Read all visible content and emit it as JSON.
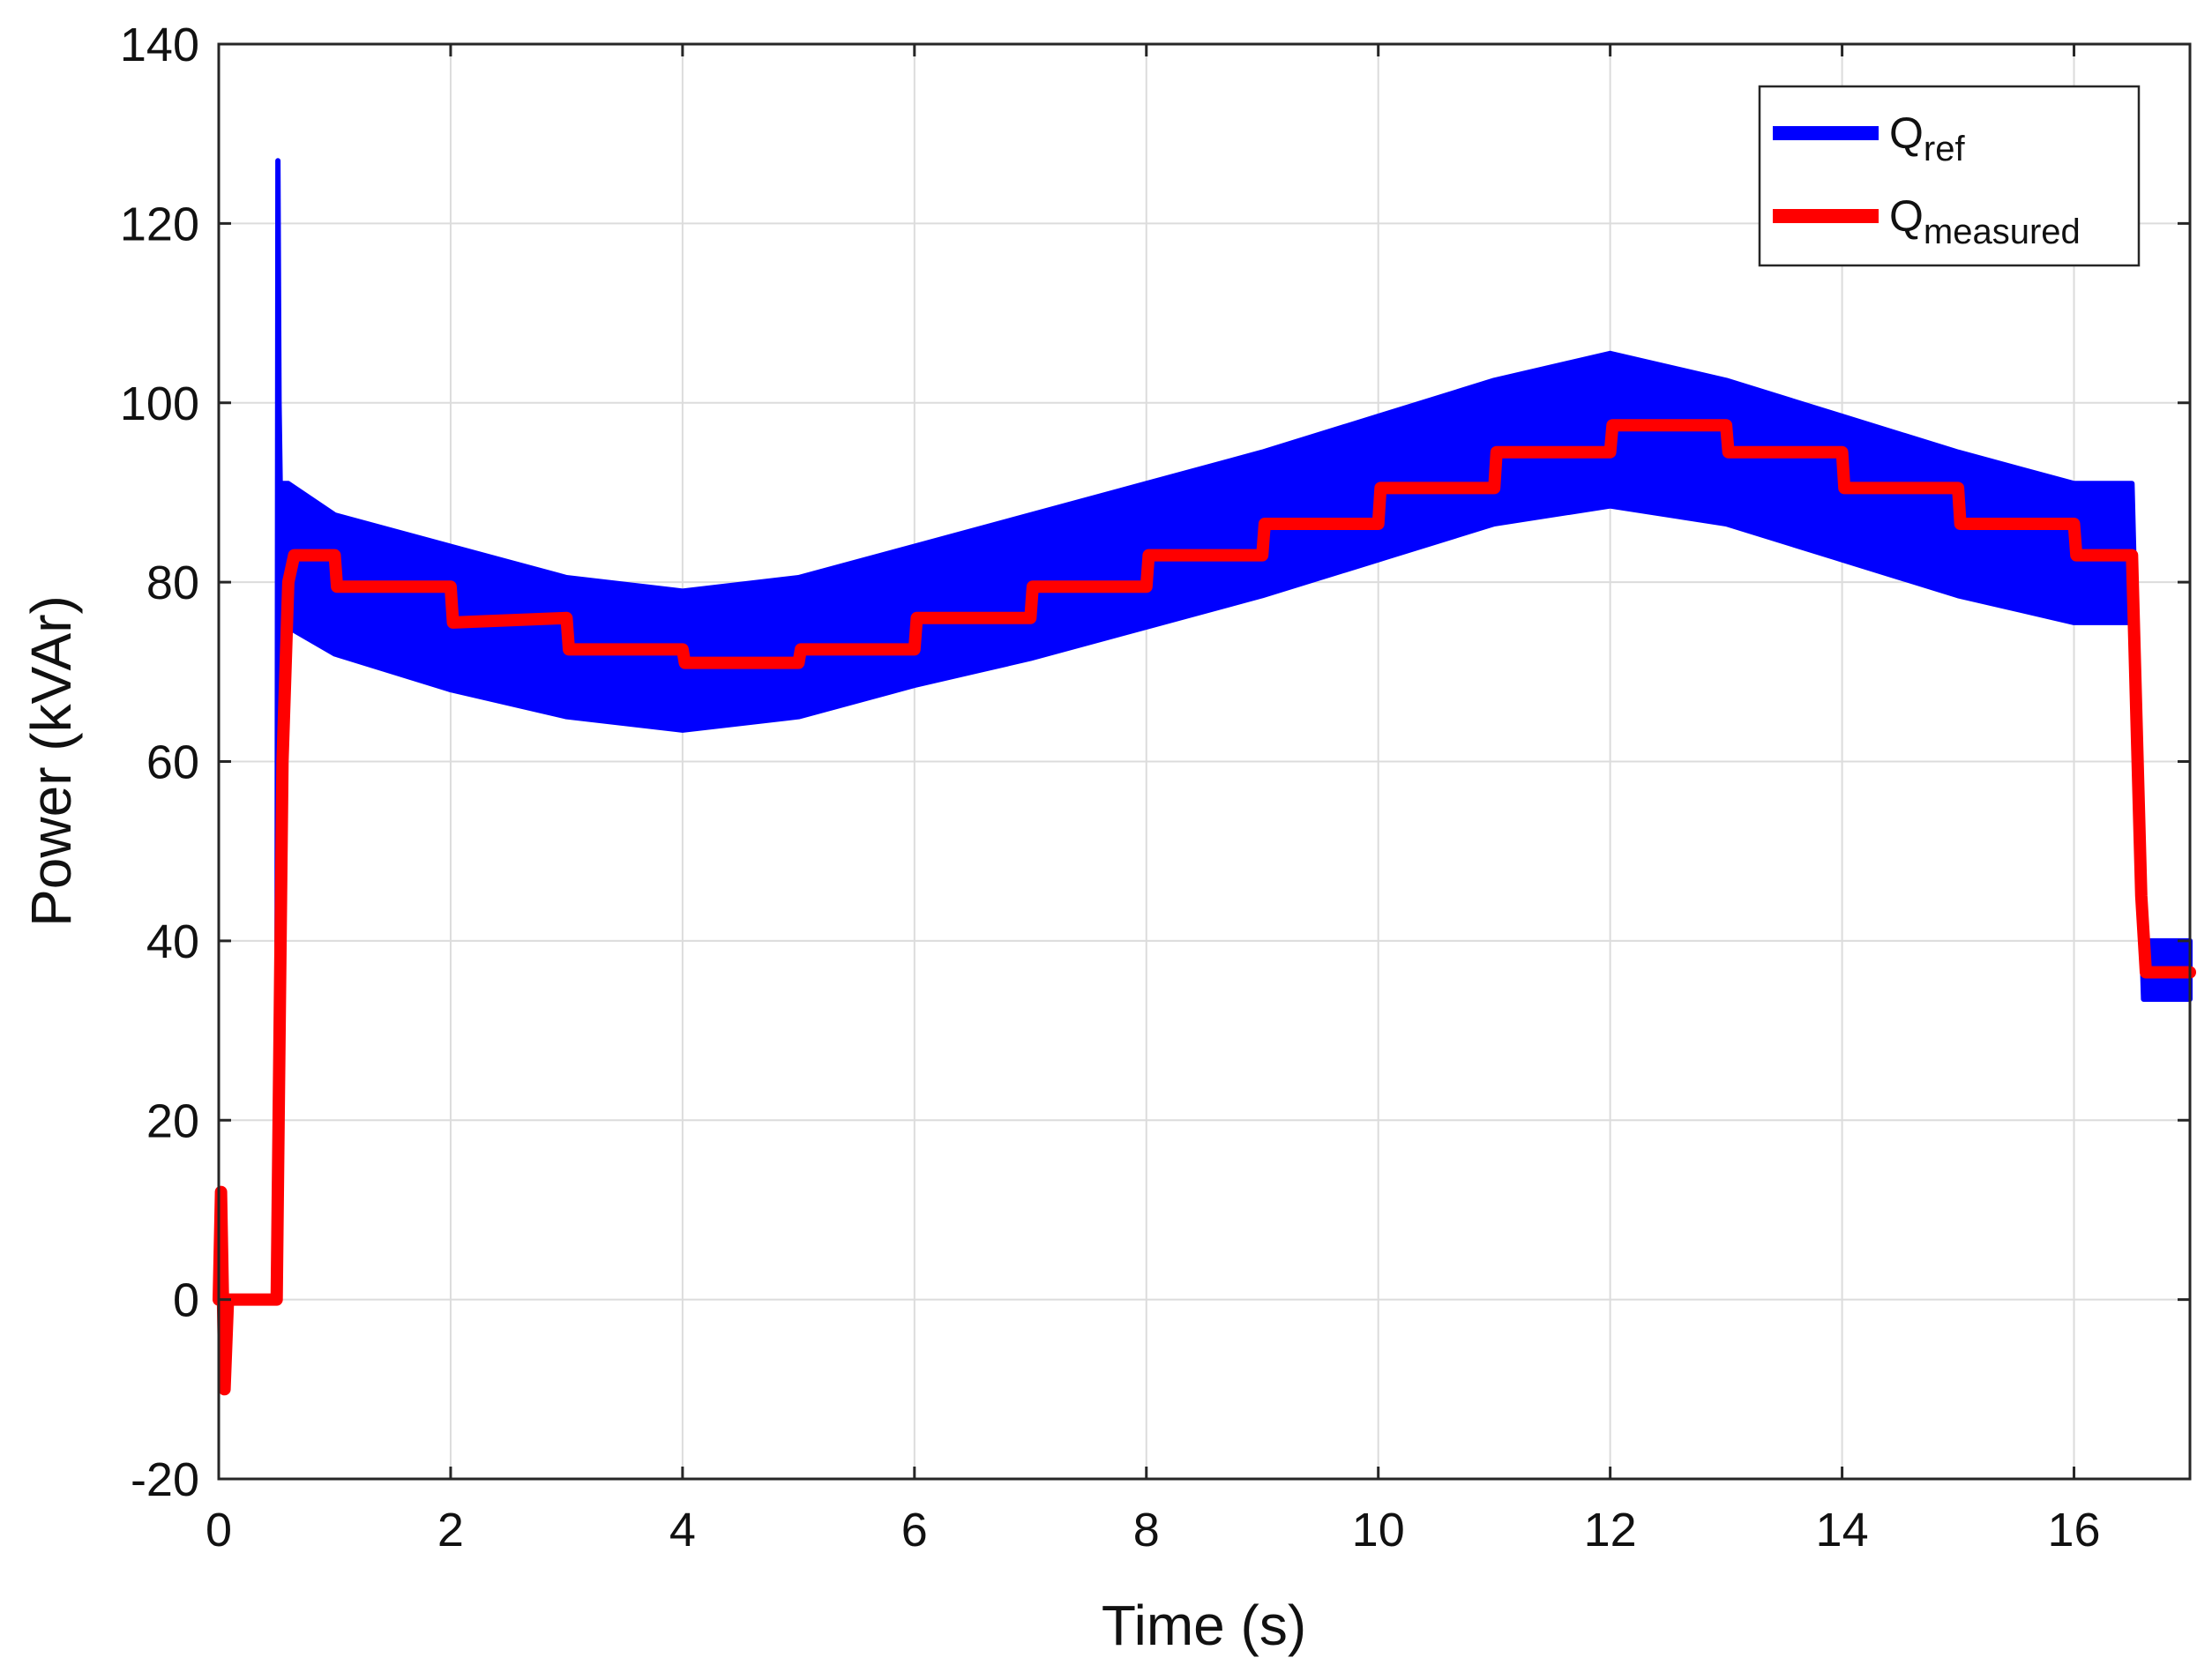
{
  "chart_data": {
    "type": "line",
    "title": "",
    "xlabel": "Time (s)",
    "ylabel": "Power (kVAr)",
    "xlim": [
      0,
      17
    ],
    "ylim": [
      -20,
      140
    ],
    "xticks": [
      0,
      2,
      4,
      6,
      8,
      10,
      12,
      14,
      16
    ],
    "yticks": [
      -20,
      0,
      20,
      40,
      60,
      80,
      100,
      120,
      140
    ],
    "grid": true,
    "legend_position": "top-right",
    "series": [
      {
        "name": "Q_ref",
        "legend_main": "Q",
        "legend_sub": "ref",
        "color": "#0000ff",
        "description": "noisy reference band (upper/lower envelope per step)",
        "x": [
          0.5,
          0.51,
          0.52,
          0.53,
          0.6,
          1.0,
          2.0,
          3.0,
          4.0,
          5.0,
          6.0,
          7.0,
          8.0,
          9.0,
          10.0,
          11.0,
          12.0,
          13.0,
          14.0,
          15.0,
          16.0,
          16.5,
          16.6,
          17.0
        ],
        "upper": [
          0,
          127,
          100,
          91,
          91,
          87.5,
          84,
          80.5,
          79,
          80.5,
          84,
          87.5,
          91,
          94.5,
          98.5,
          102.5,
          105.5,
          102.5,
          98.5,
          94.5,
          91,
          91,
          40,
          40
        ],
        "lower": [
          0,
          70,
          75,
          75,
          75,
          72,
          68,
          65,
          63.5,
          65,
          68.5,
          71.5,
          75,
          78.5,
          82.5,
          86.5,
          88.5,
          86.5,
          82.5,
          78.5,
          75.5,
          75.5,
          33.5,
          33.5
        ]
      },
      {
        "name": "Q_measured",
        "legend_main": "Q",
        "legend_sub": "measured",
        "color": "#ff0000",
        "x": [
          0,
          0.02,
          0.05,
          0.08,
          0.1,
          0.5,
          0.55,
          0.6,
          0.65,
          1.0,
          1.02,
          2.0,
          2.02,
          3.0,
          3.02,
          4.0,
          4.02,
          5.0,
          5.02,
          6.0,
          6.02,
          7.0,
          7.02,
          8.0,
          8.02,
          9.0,
          9.02,
          10.0,
          10.02,
          11.0,
          11.02,
          12.0,
          12.02,
          13.0,
          13.02,
          14.0,
          14.02,
          15.0,
          15.02,
          16.0,
          16.02,
          16.5,
          16.58,
          16.62,
          17.0
        ],
        "y": [
          0,
          12,
          -10,
          0,
          0,
          0,
          60,
          80,
          83,
          83,
          79.5,
          79.5,
          75.5,
          76,
          72.5,
          72.5,
          71,
          71,
          72.5,
          72.5,
          76,
          76,
          79.5,
          79.5,
          83,
          83,
          86.5,
          86.5,
          90.5,
          90.5,
          94.5,
          94.5,
          97.5,
          97.5,
          94.5,
          94.5,
          90.5,
          90.5,
          86.5,
          86.5,
          83,
          83,
          45,
          36.5,
          36.5
        ]
      }
    ]
  }
}
